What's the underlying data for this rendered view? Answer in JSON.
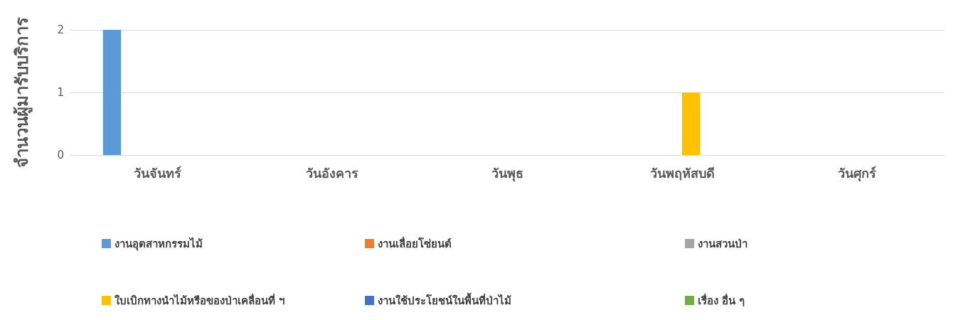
{
  "chart_data": {
    "type": "bar",
    "ylabel": "จำนวนผู้มารับบริการ",
    "categories": [
      "วันจันทร์",
      "วันอังคาร",
      "วันพุธ",
      "วันพฤหัสบดี",
      "วันศุกร์"
    ],
    "series": [
      {
        "name": "งานอุตสาหกรรมไม้",
        "color": "#5b9bd5",
        "values": [
          2,
          0,
          0,
          0,
          0
        ]
      },
      {
        "name": "งานเลื่อยโซ่ยนต์",
        "color": "#ed7d31",
        "values": [
          0,
          0,
          0,
          0,
          0
        ]
      },
      {
        "name": "งานสวนป่า",
        "color": "#a5a5a5",
        "values": [
          0,
          0,
          0,
          0,
          0
        ]
      },
      {
        "name": "ใบเบิกทางนำไม้หรือของป่าเคลื่อนที่ ฯ",
        "color": "#ffc000",
        "values": [
          0,
          0,
          0,
          1,
          0
        ]
      },
      {
        "name": "งานใช้ประโยชน์ในพื้นที่ป่าไม้",
        "color": "#4472c4",
        "values": [
          0,
          0,
          0,
          0,
          0
        ]
      },
      {
        "name": "เรื่อง อื่น ๆ",
        "color": "#70ad47",
        "values": [
          0,
          0,
          0,
          0,
          0
        ]
      }
    ],
    "ylim": [
      0,
      2
    ],
    "yticks": [
      0,
      1,
      2
    ],
    "grid": "y",
    "legend": "bottom"
  }
}
